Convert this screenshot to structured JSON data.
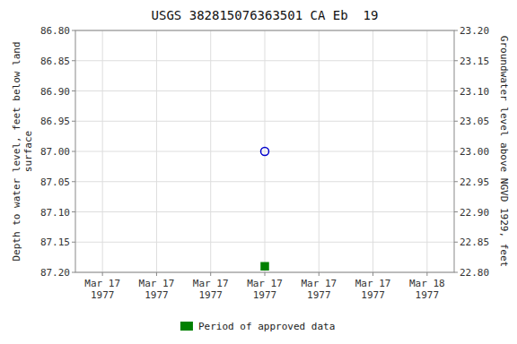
{
  "chart_data": {
    "type": "scatter",
    "title": "USGS 382815076363501 CA Eb  19",
    "y_label": "Depth to water level, feet below land\nsurface",
    "y2_label": "Groundwater level above NGVD 1929, feet",
    "categories": [
      "Mar 17\n1977",
      "Mar 17\n1977",
      "Mar 17\n1977",
      "Mar 17\n1977",
      "Mar 17\n1977",
      "Mar 17\n1977",
      "Mar 18\n1977"
    ],
    "series": [
      {
        "color": "#0000cc",
        "marker": "circle-open",
        "values": [
          null,
          null,
          null,
          87.0,
          null,
          null,
          null
        ]
      },
      {
        "name": "Period of approved data",
        "color": "#008000",
        "marker": "square",
        "values": [
          null,
          null,
          null,
          87.19,
          null,
          null,
          null
        ]
      }
    ],
    "ylim": [
      87.2,
      86.8
    ],
    "yticks": [
      {
        "value": 86.8,
        "label": "86.80"
      },
      86.85,
      {
        "value": 86.9,
        "label": "86.90"
      },
      86.95,
      {
        "value": 87.0,
        "label": "87.00"
      },
      87.05,
      {
        "value": 87.1,
        "label": "87.10"
      },
      87.15,
      {
        "value": 87.2,
        "label": "87.20"
      }
    ],
    "y2lim": [
      22.8,
      23.2
    ],
    "y2ticks": [
      {
        "value": 23.2,
        "label": "23.20"
      },
      23.15,
      {
        "value": 23.1,
        "label": "23.10"
      },
      23.05,
      {
        "value": 23.0,
        "label": "23.00"
      },
      22.95,
      {
        "value": 22.9,
        "label": "22.90"
      },
      22.85,
      {
        "value": 22.8,
        "label": "22.80"
      }
    ],
    "grid": true,
    "legend": "bottom"
  }
}
